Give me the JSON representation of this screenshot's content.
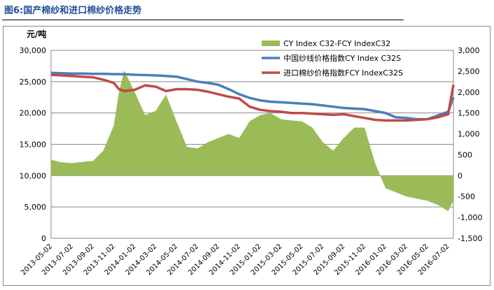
{
  "title": "图6:国产棉纱和进口棉纱价格走势",
  "chart_data": {
    "type": "line+area",
    "ylabel_left": "元/吨",
    "ylim_left": [
      0,
      30000
    ],
    "yticks_left": [
      "0",
      "5,000",
      "10,000",
      "15,000",
      "20,000",
      "25,000",
      "30,000"
    ],
    "ylim_right": [
      -1500,
      3000
    ],
    "yticks_right": [
      "-1,500",
      "-1,000",
      "-500",
      "0",
      "500",
      "1,000",
      "1,500",
      "2,000",
      "2,500",
      "3,000"
    ],
    "xticks": [
      "2013-05-02",
      "2013-07-02",
      "2013-09-02",
      "2013-11-02",
      "2014-01-02",
      "2014-03-02",
      "2014-05-02",
      "2014-07-02",
      "2014-09-02",
      "2014-11-02",
      "2015-01-02",
      "2015-03-02",
      "2015-05-02",
      "2015-07-02",
      "2015-09-02",
      "2015-11-02",
      "2016-01-02",
      "2016-03-02",
      "2016-05-02",
      "2016-07-02"
    ],
    "x_months": [
      0,
      1,
      2,
      3,
      4,
      5,
      6,
      6.5,
      7,
      8,
      9,
      10,
      11,
      12,
      13,
      14,
      15,
      16,
      17,
      18,
      19,
      20,
      21,
      22,
      23,
      24,
      25,
      26,
      27,
      28,
      29,
      30,
      31,
      32,
      33,
      34,
      35,
      36,
      37,
      38,
      38.5
    ],
    "grid": true,
    "legend": "top-right",
    "series": [
      {
        "name": "CY Index C32-FCY IndexC32",
        "axis": "right",
        "kind": "area",
        "color": "#9bbb59",
        "values": [
          380,
          320,
          300,
          330,
          350,
          600,
          1200,
          2000,
          2520,
          2000,
          1450,
          1550,
          1940,
          1300,
          690,
          650,
          800,
          900,
          1000,
          900,
          1300,
          1450,
          1500,
          1350,
          1320,
          1300,
          1150,
          800,
          600,
          900,
          1150,
          1150,
          300,
          -300,
          -400,
          -500,
          -550,
          -600,
          -700,
          -850,
          -600
        ]
      },
      {
        "name": "中国纱线价格指数CY Index C32S",
        "axis": "left",
        "kind": "line",
        "color": "#4a7ebb",
        "values": [
          26400,
          26350,
          26300,
          26300,
          26250,
          26250,
          26200,
          26200,
          26200,
          26100,
          26050,
          26000,
          25900,
          25800,
          25400,
          25000,
          24800,
          24500,
          23800,
          23000,
          22400,
          22000,
          21800,
          21700,
          21600,
          21500,
          21400,
          21200,
          21000,
          20800,
          20700,
          20600,
          20300,
          20000,
          19300,
          19200,
          19000,
          19000,
          19600,
          20200,
          22500
        ]
      },
      {
        "name": "进口棉纱价格指数FCY IndexC32S",
        "axis": "left",
        "kind": "line",
        "color": "#be4b48",
        "values": [
          26100,
          26000,
          25900,
          25800,
          25700,
          25300,
          24800,
          23800,
          23500,
          23700,
          24400,
          24200,
          23500,
          23800,
          23800,
          23700,
          23400,
          23000,
          22600,
          22300,
          21000,
          20500,
          20300,
          20200,
          20000,
          20000,
          19900,
          19800,
          19700,
          19800,
          19500,
          19200,
          18900,
          18800,
          18800,
          18800,
          18900,
          19000,
          19300,
          19800,
          24500
        ]
      }
    ]
  }
}
